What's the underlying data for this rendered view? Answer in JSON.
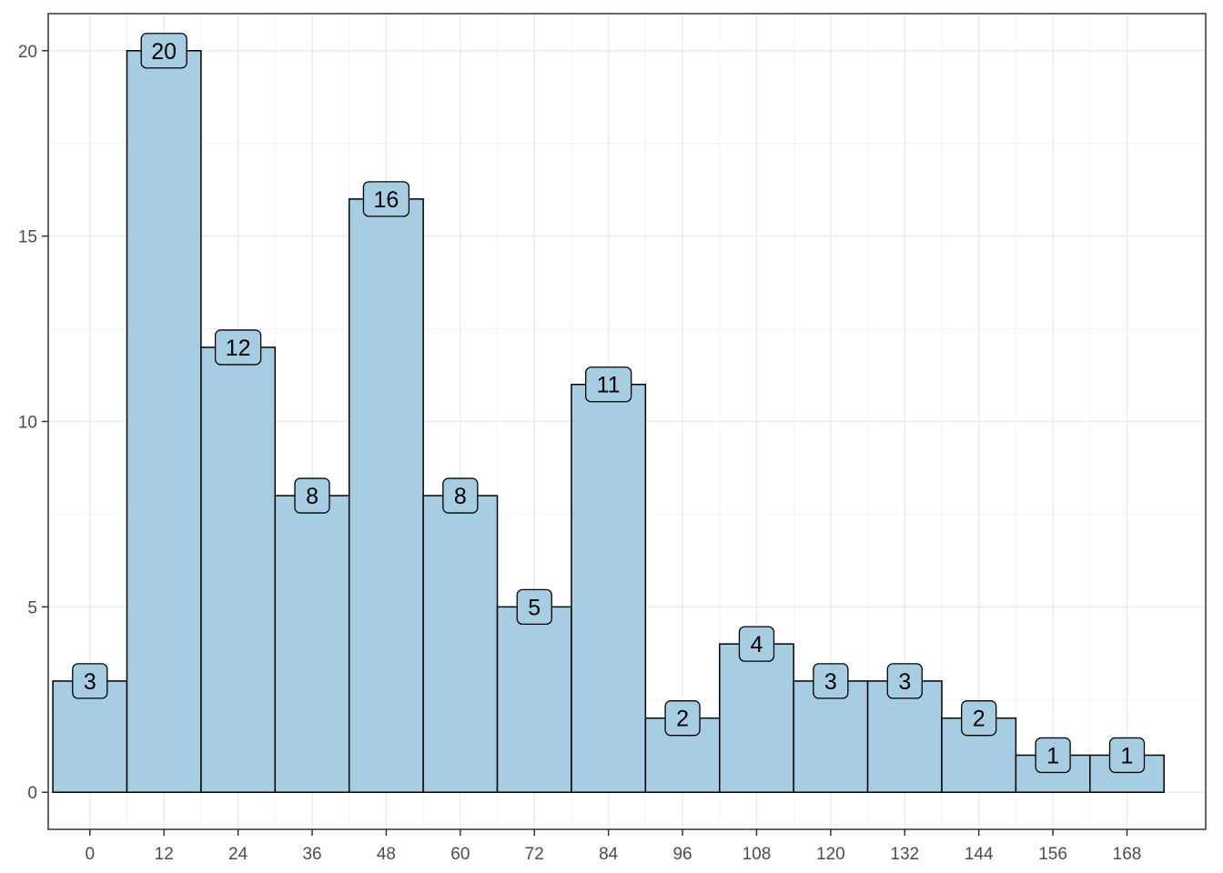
{
  "chart_data": {
    "type": "bar",
    "title": "",
    "xlabel": "",
    "ylabel": "",
    "bin_width": 12,
    "x_centers": [
      0,
      12,
      24,
      36,
      48,
      60,
      72,
      84,
      96,
      108,
      120,
      132,
      144,
      156,
      168
    ],
    "values": [
      3,
      20,
      12,
      8,
      16,
      8,
      5,
      11,
      2,
      4,
      3,
      3,
      2,
      1,
      1
    ],
    "data_labels": [
      "3",
      "20",
      "12",
      "8",
      "16",
      "8",
      "5",
      "11",
      "2",
      "4",
      "3",
      "3",
      "2",
      "1",
      "1"
    ],
    "x_ticks": [
      0,
      12,
      24,
      36,
      48,
      60,
      72,
      84,
      96,
      108,
      120,
      132,
      144,
      156,
      168
    ],
    "x_tick_labels": [
      "0",
      "12",
      "24",
      "36",
      "48",
      "60",
      "72",
      "84",
      "96",
      "108",
      "120",
      "132",
      "144",
      "156",
      "168"
    ],
    "y_ticks": [
      0,
      5,
      10,
      15,
      20
    ],
    "y_tick_labels": [
      "0",
      "5",
      "10",
      "15",
      "20"
    ],
    "xlim": [
      -6.75,
      180.75
    ],
    "ylim": [
      -1,
      21
    ],
    "grid": true,
    "legend": "none",
    "colors": {
      "bar_fill": "#a6cde2",
      "bar_stroke": "#000000",
      "label_fill": "#a6cde2",
      "grid_major": "#ebebeb",
      "grid_minor": "#f3f3f3",
      "panel_border": "#333333",
      "tick_text": "#4d4d4d"
    }
  }
}
